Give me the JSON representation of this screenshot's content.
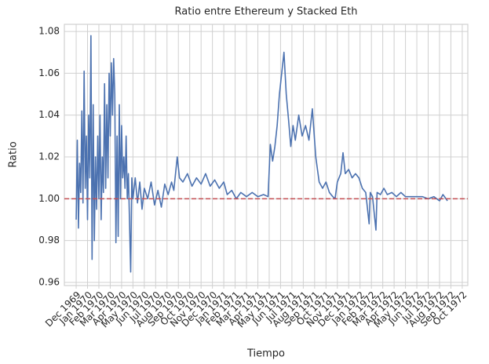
{
  "chart_data": {
    "type": "line",
    "title": "Ratio entre Ethereum y Stacked Eth",
    "xlabel": "Tiempo",
    "ylabel": "Ratio",
    "x": [
      -1.0,
      -0.9,
      -0.8,
      -0.7,
      -0.6,
      -0.5,
      -0.4,
      -0.3,
      -0.2,
      -0.1,
      0,
      0.1,
      0.2,
      0.3,
      0.4,
      0.5,
      0.6,
      0.7,
      0.8,
      0.9,
      1.0,
      1.1,
      1.2,
      1.3,
      1.4,
      1.5,
      1.6,
      1.7,
      1.8,
      1.9,
      2.0,
      2.1,
      2.2,
      2.3,
      2.4,
      2.5,
      2.6,
      2.7,
      2.8,
      2.9,
      3.0,
      3.1,
      3.2,
      3.3,
      3.4,
      3.5,
      3.6,
      3.8,
      3.9,
      4.0,
      4.2,
      4.4,
      4.6,
      4.8,
      5.0,
      5.3,
      5.6,
      5.9,
      6.2,
      6.5,
      6.8,
      7.1,
      7.4,
      7.6,
      7.9,
      8.1,
      8.4,
      8.8,
      9.2,
      9.6,
      10.0,
      10.4,
      10.8,
      11.2,
      11.6,
      12.0,
      12.3,
      12.7,
      13.1,
      13.5,
      14.0,
      14.5,
      15.0,
      15.5,
      15.9,
      16.1,
      16.3,
      16.5,
      16.7,
      16.9,
      17.1,
      17.3,
      17.5,
      17.7,
      17.9,
      18.1,
      18.3,
      18.6,
      18.9,
      19.2,
      19.5,
      19.8,
      20.1,
      20.4,
      20.7,
      21.0,
      21.3,
      21.6,
      21.8,
      22.0,
      22.3,
      22.5,
      22.7,
      23.0,
      23.3,
      23.6,
      23.9,
      24.2,
      24.5,
      24.8,
      24.9,
      25.1,
      25.4,
      25.5,
      25.8,
      26.1,
      26.4,
      26.8,
      27.2,
      27.6,
      28.0,
      28.5,
      29.0,
      29.5,
      30.0,
      30.5,
      31.0,
      31.3,
      31.7
    ],
    "values": [
      0.99,
      1.028,
      0.986,
      1.017,
      1.003,
      1.042,
      0.998,
      1.061,
      1.005,
      1.03,
      0.99,
      1.04,
      1.01,
      1.078,
      0.971,
      1.045,
      0.98,
      1.02,
      0.995,
      1.03,
      1.0,
      1.04,
      0.99,
      1.02,
      1.003,
      1.055,
      1.005,
      1.045,
      1.01,
      1.06,
      1.03,
      1.065,
      1.04,
      1.067,
      1.05,
      0.979,
      1.03,
      0.982,
      1.045,
      1.0,
      1.035,
      1.01,
      1.02,
      1.005,
      1.03,
      1.0,
      1.012,
      0.965,
      1.01,
      1.0,
      1.01,
      0.998,
      1.008,
      0.995,
      1.005,
      1.0,
      1.008,
      0.997,
      1.004,
      0.996,
      1.007,
      1.002,
      1.008,
      1.004,
      1.02,
      1.01,
      1.008,
      1.012,
      1.006,
      1.01,
      1.007,
      1.012,
      1.006,
      1.009,
      1.005,
      1.008,
      1.002,
      1.004,
      1.0,
      1.003,
      1.001,
      1.003,
      1.001,
      1.002,
      1.001,
      1.026,
      1.018,
      1.025,
      1.035,
      1.05,
      1.06,
      1.07,
      1.05,
      1.038,
      1.025,
      1.035,
      1.028,
      1.04,
      1.03,
      1.035,
      1.028,
      1.043,
      1.02,
      1.008,
      1.005,
      1.008,
      1.003,
      1.001,
      1.0,
      1.008,
      1.012,
      1.022,
      1.012,
      1.014,
      1.01,
      1.012,
      1.01,
      1.005,
      1.003,
      0.988,
      1.003,
      1.001,
      0.985,
      1.003,
      1.002,
      1.005,
      1.002,
      1.003,
      1.001,
      1.003,
      1.001,
      1.001,
      1.001,
      1.001,
      1.0,
      1.001,
      0.999,
      1.002,
      0.999
    ],
    "color": "#4c72b0",
    "hline": 1,
    "hline_color": "#c44e52",
    "xlim": [
      -2.04,
      33.49
    ],
    "ylim": [
      0.9585,
      1.0834
    ],
    "xticks": [
      {
        "value": -1,
        "label": "Dec 1969"
      },
      {
        "value": 0,
        "label": "Jan 1970"
      },
      {
        "value": 1,
        "label": "Feb 1970"
      },
      {
        "value": 2,
        "label": "Mar 1970"
      },
      {
        "value": 3,
        "label": "Apr 1970"
      },
      {
        "value": 4,
        "label": "May 1970"
      },
      {
        "value": 5,
        "label": "Jun 1970"
      },
      {
        "value": 6,
        "label": "Jul 1970"
      },
      {
        "value": 7,
        "label": "Aug 1970"
      },
      {
        "value": 8,
        "label": "Sep 1970"
      },
      {
        "value": 9,
        "label": "Oct 1970"
      },
      {
        "value": 10,
        "label": "Nov 1970"
      },
      {
        "value": 11,
        "label": "Dec 1970"
      },
      {
        "value": 12,
        "label": "Jan 1971"
      },
      {
        "value": 13,
        "label": "Feb 1971"
      },
      {
        "value": 14,
        "label": "Mar 1971"
      },
      {
        "value": 15,
        "label": "Apr 1971"
      },
      {
        "value": 16,
        "label": "May 1971"
      },
      {
        "value": 17,
        "label": "Jun 1971"
      },
      {
        "value": 18,
        "label": "Jul 1971"
      },
      {
        "value": 19,
        "label": "Aug 1971"
      },
      {
        "value": 20,
        "label": "Sep 1971"
      },
      {
        "value": 21,
        "label": "Oct 1971"
      },
      {
        "value": 22,
        "label": "Nov 1971"
      },
      {
        "value": 23,
        "label": "Dec 1971"
      },
      {
        "value": 24,
        "label": "Jan 1972"
      },
      {
        "value": 25,
        "label": "Feb 1972"
      },
      {
        "value": 26,
        "label": "Mar 1972"
      },
      {
        "value": 27,
        "label": "Apr 1972"
      },
      {
        "value": 28,
        "label": "May 1972"
      },
      {
        "value": 29,
        "label": "Jun 1972"
      },
      {
        "value": 30,
        "label": "Jul 1972"
      },
      {
        "value": 31,
        "label": "Aug 1972"
      },
      {
        "value": 32,
        "label": "Sep 1972"
      },
      {
        "value": 33,
        "label": "Oct 1972"
      }
    ],
    "yticks": [
      0.96,
      0.98,
      {
        "value": 1,
        "label": "1.00"
      },
      1.02,
      1.04,
      1.06,
      1.08
    ],
    "grid": true
  }
}
